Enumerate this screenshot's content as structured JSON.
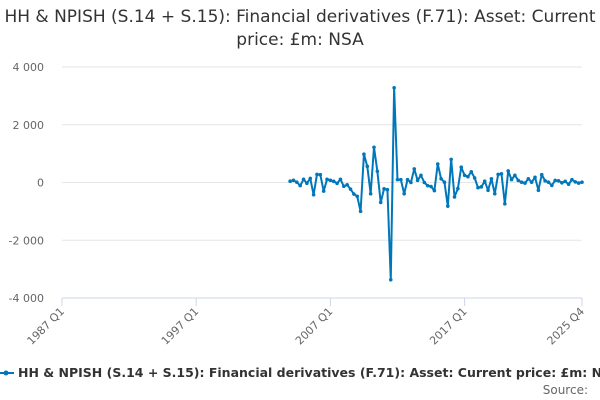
{
  "chart_data": {
    "type": "line",
    "title": "HH & NPISH (S.14 + S.15): Financial derivatives (F.71): Asset: Current price: £m: NSA",
    "xlabel": "",
    "ylabel": "",
    "x_range": [
      "1987 Q1",
      "2025 Q4"
    ],
    "x_tick_labels": [
      "1987 Q1",
      "1997 Q1",
      "2007 Q1",
      "2017 Q1",
      "2025 Q4"
    ],
    "ylim": [
      -4000,
      4000
    ],
    "y_ticks": [
      4000,
      2000,
      0,
      -2000,
      -4000
    ],
    "y_tick_labels": [
      "4 000",
      "2 000",
      "0",
      "-2 000",
      "-4 000"
    ],
    "grid": true,
    "legend_position": "bottom",
    "series": [
      {
        "name": "HH & NPISH (S.14 + S.15): Financial derivatives (F.71): Asset: Current price: £m: NSA",
        "color": "#0077bb",
        "start": "2004 Q1",
        "end": "2025 Q4",
        "values": [
          45,
          75,
          10,
          -110,
          110,
          -25,
          140,
          -425,
          280,
          270,
          -300,
          110,
          75,
          40,
          -30,
          110,
          -130,
          -80,
          -230,
          -400,
          -480,
          -1000,
          980,
          560,
          -390,
          1220,
          390,
          -690,
          -220,
          -250,
          -3370,
          3280,
          100,
          100,
          -390,
          100,
          0,
          470,
          75,
          250,
          0,
          -110,
          -140,
          -280,
          640,
          130,
          10,
          -820,
          800,
          -500,
          -210,
          530,
          250,
          200,
          370,
          160,
          -180,
          -150,
          45,
          -270,
          130,
          -390,
          280,
          300,
          -740,
          400,
          100,
          250,
          70,
          10,
          -20,
          130,
          10,
          180,
          -270,
          270,
          60,
          10,
          -100,
          70,
          60,
          -10,
          40,
          -60,
          100,
          20,
          -20,
          10
        ]
      }
    ]
  },
  "source_label": "Source:"
}
